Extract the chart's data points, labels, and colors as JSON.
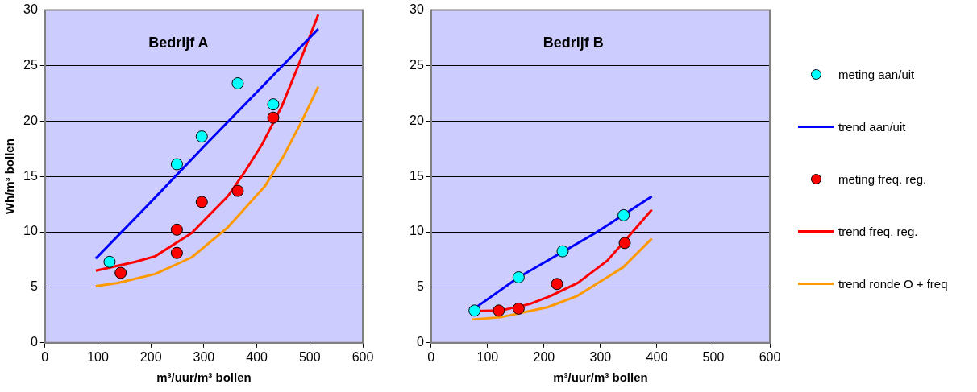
{
  "chart_data": [
    {
      "type": "scatter",
      "title": "Bedrijf A",
      "xlabel": "m³/uur/m³ bollen",
      "ylabel": "Wh/m³ bollen",
      "xlim": [
        0,
        600
      ],
      "xticks": [
        0,
        100,
        200,
        300,
        400,
        500,
        600
      ],
      "ylim": [
        0,
        30
      ],
      "yticks": [
        0,
        5,
        10,
        15,
        20,
        25,
        30
      ],
      "grid": "y",
      "legend": false,
      "series": [
        {
          "type": "scatter",
          "marker": "circle",
          "color": "#00ffff",
          "x": [
            122,
            249,
            296,
            364,
            431
          ],
          "values": [
            7.3,
            16.1,
            18.6,
            23.4,
            21.5
          ]
        },
        {
          "type": "line",
          "marker": "none",
          "color": "#0000ff",
          "x": [
            96,
            200,
            300,
            400,
            516
          ],
          "values": [
            7.6,
            12.7,
            17.7,
            22.6,
            28.3
          ]
        },
        {
          "type": "scatter",
          "marker": "circle",
          "color": "#ff0000",
          "x": [
            143,
            249,
            249,
            296,
            364,
            431
          ],
          "values": [
            6.3,
            10.2,
            8.1,
            12.7,
            13.7,
            20.3
          ]
        },
        {
          "type": "line",
          "marker": "none",
          "color": "#ff0000",
          "x": [
            96,
            171,
            208,
            277,
            345,
            377,
            410,
            447,
            475,
            516
          ],
          "values": [
            6.5,
            7.3,
            7.8,
            9.9,
            13.2,
            15.4,
            17.9,
            21.3,
            24.6,
            29.6
          ]
        },
        {
          "type": "line",
          "marker": "none",
          "color": "#ff9900",
          "x": [
            96,
            138,
            208,
            277,
            345,
            377,
            415,
            450,
            485,
            516
          ],
          "values": [
            5.1,
            5.4,
            6.2,
            7.7,
            10.4,
            12.1,
            14.1,
            16.8,
            20,
            23.1
          ]
        }
      ]
    },
    {
      "type": "scatter",
      "title": "Bedrijf B",
      "xlabel": "m³/uur/m³ bollen",
      "xlim": [
        0,
        600
      ],
      "xticks": [
        0,
        100,
        200,
        300,
        400,
        500,
        600
      ],
      "ylim": [
        0,
        30
      ],
      "yticks": [
        0,
        5,
        10,
        15,
        20,
        25,
        30
      ],
      "grid": "y",
      "legend": "right",
      "series": [
        {
          "name": "meting aan/uit",
          "type": "scatter",
          "marker": "circle",
          "color": "#00ffff",
          "x": [
            77,
            155,
            233,
            341
          ],
          "values": [
            2.9,
            5.9,
            8.25,
            11.5
          ]
        },
        {
          "name": "trend aan/uit",
          "type": "line",
          "marker": "none",
          "color": "#0000ff",
          "x": [
            77,
            155,
            291,
            391
          ],
          "values": [
            3.1,
            5.9,
            9.9,
            13.2
          ]
        },
        {
          "name": "meting freq. reg.",
          "type": "scatter",
          "marker": "circle",
          "color": "#ff0000",
          "x": [
            120,
            155,
            223,
            343
          ],
          "values": [
            2.9,
            3.08,
            5.3,
            9.0
          ]
        },
        {
          "name": "trend freq. reg.",
          "type": "line",
          "marker": "none",
          "color": "#ff0000",
          "x": [
            77,
            123,
            175,
            211,
            260,
            312,
            340,
            391
          ],
          "values": [
            2.85,
            2.9,
            3.5,
            4.2,
            5.4,
            7.4,
            9.0,
            12.0
          ]
        },
        {
          "name": "trend ronde O + freq",
          "type": "line",
          "marker": "none",
          "color": "#ff9900",
          "x": [
            72,
            123,
            206,
            258,
            340,
            391
          ],
          "values": [
            2.1,
            2.3,
            3.2,
            4.2,
            6.8,
            9.4
          ]
        }
      ]
    }
  ]
}
